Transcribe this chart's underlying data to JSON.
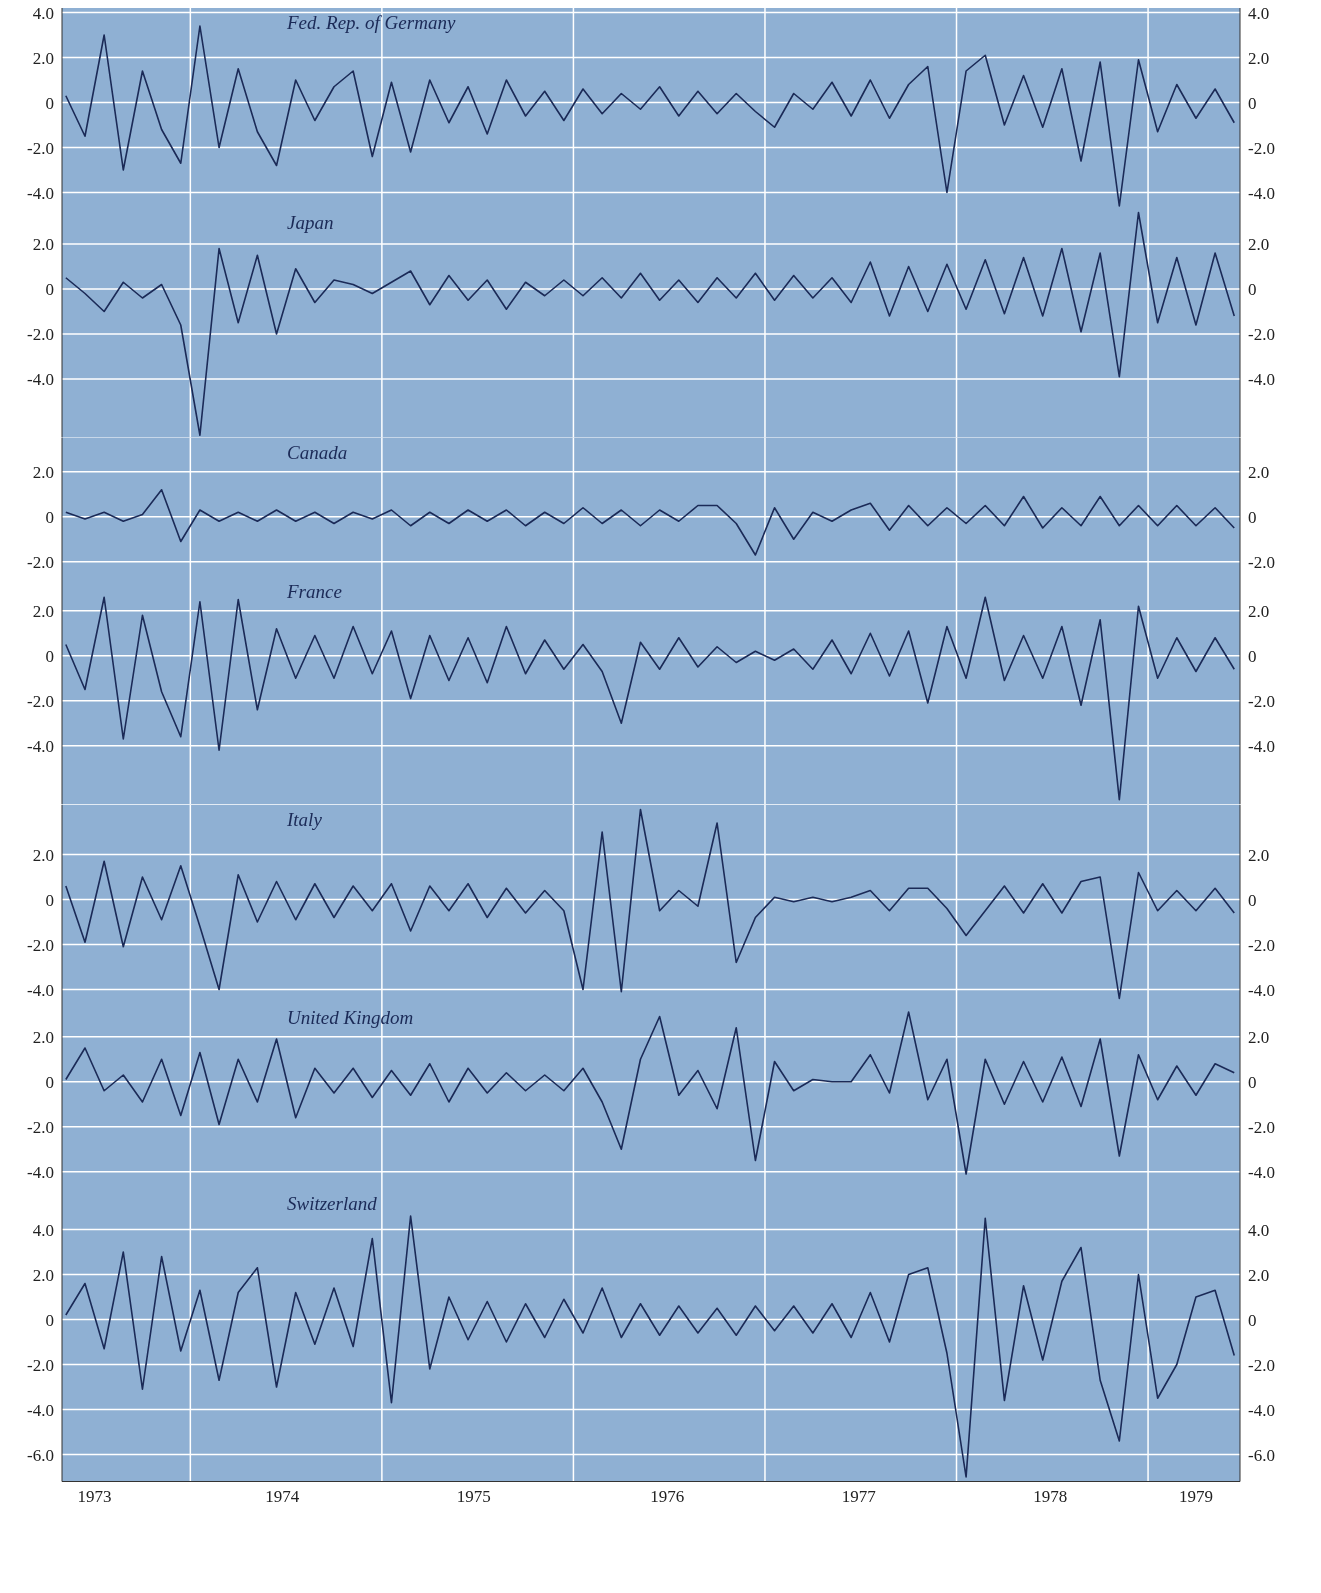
{
  "chart_data": [
    {
      "type": "line",
      "title": "Fed. Rep. of Germany",
      "color": "#1b2a57",
      "grid": true,
      "tick_labels": "y",
      "xlim": [
        1973.33,
        1979.48
      ],
      "xticks": [
        {
          "value": 1974,
          "label": null
        },
        {
          "value": 1975,
          "label": null
        },
        {
          "value": 1976,
          "label": null
        },
        {
          "value": 1977,
          "label": null
        },
        {
          "value": 1978,
          "label": null
        },
        {
          "value": 1979,
          "label": null
        }
      ],
      "ylim": [
        -4.7,
        4.2
      ],
      "yticks": [
        {
          "value": -4,
          "label": "-4.0"
        },
        {
          "value": -2,
          "label": "-2.0"
        },
        {
          "value": 0,
          "label": "0"
        },
        {
          "value": 2,
          "label": "2.0"
        },
        {
          "value": 4,
          "label": "4.0"
        }
      ],
      "y2lim": [
        -4.7,
        4.2
      ],
      "y2ticks": [
        {
          "value": -4,
          "label": "-4.0"
        },
        {
          "value": -2,
          "label": "-2.0"
        },
        {
          "value": 0,
          "label": "0"
        },
        {
          "value": 2,
          "label": "2.0"
        },
        {
          "value": 4,
          "label": "4.0"
        }
      ],
      "x": [
        1973.35,
        1973.45,
        1973.55,
        1973.65,
        1973.75,
        1973.85,
        1973.95,
        1974.05,
        1974.15,
        1974.25,
        1974.35,
        1974.45,
        1974.55,
        1974.65,
        1974.75,
        1974.85,
        1974.95,
        1975.05,
        1975.15,
        1975.25,
        1975.35,
        1975.45,
        1975.55,
        1975.65,
        1975.75,
        1975.85,
        1975.95,
        1976.05,
        1976.15,
        1976.25,
        1976.35,
        1976.45,
        1976.55,
        1976.65,
        1976.75,
        1976.85,
        1976.95,
        1977.05,
        1977.15,
        1977.25,
        1977.35,
        1977.45,
        1977.55,
        1977.65,
        1977.75,
        1977.85,
        1977.95,
        1978.05,
        1978.15,
        1978.25,
        1978.35,
        1978.45,
        1978.55,
        1978.65,
        1978.75,
        1978.85,
        1978.95,
        1979.05,
        1979.15,
        1979.25,
        1979.35,
        1979.45
      ],
      "values": [
        0.3,
        -1.5,
        3.0,
        -3.0,
        1.4,
        -1.2,
        -2.7,
        3.4,
        -2.0,
        1.5,
        -1.3,
        -2.8,
        1.0,
        -0.8,
        0.7,
        1.4,
        -2.4,
        0.9,
        -2.2,
        1.0,
        -0.9,
        0.7,
        -1.4,
        1.0,
        -0.6,
        0.5,
        -0.8,
        0.6,
        -0.5,
        0.4,
        -0.3,
        0.7,
        -0.6,
        0.5,
        -0.5,
        0.4,
        -0.4,
        -1.1,
        0.4,
        -0.3,
        0.9,
        -0.6,
        1.0,
        -0.7,
        0.8,
        1.6,
        -4.0,
        1.4,
        2.1,
        -1.0,
        1.2,
        -1.1,
        1.5,
        -2.6,
        1.8,
        -4.6,
        1.9,
        -1.3,
        0.8,
        -0.7,
        0.6,
        -0.9
      ]
    },
    {
      "type": "line",
      "title": "Japan",
      "color": "#1b2a57",
      "grid": true,
      "tick_labels": "y",
      "xlim": [
        1973.33,
        1979.48
      ],
      "xticks": [
        {
          "value": 1974,
          "label": null
        },
        {
          "value": 1975,
          "label": null
        },
        {
          "value": 1976,
          "label": null
        },
        {
          "value": 1977,
          "label": null
        },
        {
          "value": 1978,
          "label": null
        },
        {
          "value": 1979,
          "label": null
        }
      ],
      "ylim": [
        -6.6,
        3.6
      ],
      "yticks": [
        {
          "value": -4,
          "label": "-4.0"
        },
        {
          "value": -2,
          "label": "-2.0"
        },
        {
          "value": 0,
          "label": "0"
        },
        {
          "value": 2,
          "label": "2.0"
        }
      ],
      "y2lim": [
        -6.6,
        3.6
      ],
      "y2ticks": [
        {
          "value": -4,
          "label": "-4.0"
        },
        {
          "value": -2,
          "label": "-2.0"
        },
        {
          "value": 0,
          "label": "0"
        },
        {
          "value": 2,
          "label": "2.0"
        }
      ],
      "x": [
        1973.35,
        1973.45,
        1973.55,
        1973.65,
        1973.75,
        1973.85,
        1973.95,
        1974.05,
        1974.15,
        1974.25,
        1974.35,
        1974.45,
        1974.55,
        1974.65,
        1974.75,
        1974.85,
        1974.95,
        1975.05,
        1975.15,
        1975.25,
        1975.35,
        1975.45,
        1975.55,
        1975.65,
        1975.75,
        1975.85,
        1975.95,
        1976.05,
        1976.15,
        1976.25,
        1976.35,
        1976.45,
        1976.55,
        1976.65,
        1976.75,
        1976.85,
        1976.95,
        1977.05,
        1977.15,
        1977.25,
        1977.35,
        1977.45,
        1977.55,
        1977.65,
        1977.75,
        1977.85,
        1977.95,
        1978.05,
        1978.15,
        1978.25,
        1978.35,
        1978.45,
        1978.55,
        1978.65,
        1978.75,
        1978.85,
        1978.95,
        1979.05,
        1979.15,
        1979.25,
        1979.35,
        1979.45
      ],
      "values": [
        0.5,
        -0.2,
        -1.0,
        0.3,
        -0.4,
        0.2,
        -1.6,
        -6.5,
        1.8,
        -1.5,
        1.5,
        -2.0,
        0.9,
        -0.6,
        0.4,
        0.2,
        -0.2,
        0.3,
        0.8,
        -0.7,
        0.6,
        -0.5,
        0.4,
        -0.9,
        0.3,
        -0.3,
        0.4,
        -0.3,
        0.5,
        -0.4,
        0.7,
        -0.5,
        0.4,
        -0.6,
        0.5,
        -0.4,
        0.7,
        -0.5,
        0.6,
        -0.4,
        0.5,
        -0.6,
        1.2,
        -1.2,
        1.0,
        -1.0,
        1.1,
        -0.9,
        1.3,
        -1.1,
        1.4,
        -1.2,
        1.8,
        -1.9,
        1.6,
        -3.9,
        3.4,
        -1.5,
        1.4,
        -1.6,
        1.6,
        -1.2
      ]
    },
    {
      "type": "line",
      "title": "Canada",
      "color": "#1b2a57",
      "grid": true,
      "tick_labels": "y",
      "xlim": [
        1973.33,
        1979.48
      ],
      "xticks": [
        {
          "value": 1974,
          "label": null
        },
        {
          "value": 1975,
          "label": null
        },
        {
          "value": 1976,
          "label": null
        },
        {
          "value": 1977,
          "label": null
        },
        {
          "value": 1978,
          "label": null
        },
        {
          "value": 1979,
          "label": null
        }
      ],
      "ylim": [
        -2.7,
        3.5
      ],
      "yticks": [
        {
          "value": -2,
          "label": "-2.0"
        },
        {
          "value": 0,
          "label": "0"
        },
        {
          "value": 2,
          "label": "2.0"
        }
      ],
      "y2lim": [
        -2.7,
        3.5
      ],
      "y2ticks": [
        {
          "value": -2,
          "label": "-2.0"
        },
        {
          "value": 0,
          "label": "0"
        },
        {
          "value": 2,
          "label": "2.0"
        }
      ],
      "x": [
        1973.35,
        1973.45,
        1973.55,
        1973.65,
        1973.75,
        1973.85,
        1973.95,
        1974.05,
        1974.15,
        1974.25,
        1974.35,
        1974.45,
        1974.55,
        1974.65,
        1974.75,
        1974.85,
        1974.95,
        1975.05,
        1975.15,
        1975.25,
        1975.35,
        1975.45,
        1975.55,
        1975.65,
        1975.75,
        1975.85,
        1975.95,
        1976.05,
        1976.15,
        1976.25,
        1976.35,
        1976.45,
        1976.55,
        1976.65,
        1976.75,
        1976.85,
        1976.95,
        1977.05,
        1977.15,
        1977.25,
        1977.35,
        1977.45,
        1977.55,
        1977.65,
        1977.75,
        1977.85,
        1977.95,
        1978.05,
        1978.15,
        1978.25,
        1978.35,
        1978.45,
        1978.55,
        1978.65,
        1978.75,
        1978.85,
        1978.95,
        1979.05,
        1979.15,
        1979.25,
        1979.35,
        1979.45
      ],
      "values": [
        0.2,
        -0.1,
        0.2,
        -0.2,
        0.1,
        1.2,
        -1.1,
        0.3,
        -0.2,
        0.2,
        -0.2,
        0.3,
        -0.2,
        0.2,
        -0.3,
        0.2,
        -0.1,
        0.3,
        -0.4,
        0.2,
        -0.3,
        0.3,
        -0.2,
        0.3,
        -0.4,
        0.2,
        -0.3,
        0.4,
        -0.3,
        0.3,
        -0.4,
        0.3,
        -0.2,
        0.5,
        0.5,
        -0.3,
        -1.7,
        0.4,
        -1.0,
        0.2,
        -0.2,
        0.3,
        0.6,
        -0.6,
        0.5,
        -0.4,
        0.4,
        -0.3,
        0.5,
        -0.4,
        0.9,
        -0.5,
        0.4,
        -0.4,
        0.9,
        -0.4,
        0.5,
        -0.4,
        0.5,
        -0.4,
        0.4,
        -0.5
      ]
    },
    {
      "type": "line",
      "title": "France",
      "color": "#1b2a57",
      "grid": true,
      "tick_labels": "y",
      "xlim": [
        1973.33,
        1979.48
      ],
      "xticks": [
        {
          "value": 1974,
          "label": null
        },
        {
          "value": 1975,
          "label": null
        },
        {
          "value": 1976,
          "label": null
        },
        {
          "value": 1977,
          "label": null
        },
        {
          "value": 1978,
          "label": null
        },
        {
          "value": 1979,
          "label": null
        }
      ],
      "ylim": [
        -6.6,
        3.5
      ],
      "yticks": [
        {
          "value": -4,
          "label": "-4.0"
        },
        {
          "value": -2,
          "label": "-2.0"
        },
        {
          "value": 0,
          "label": "0"
        },
        {
          "value": 2,
          "label": "2.0"
        }
      ],
      "y2lim": [
        -6.6,
        3.5
      ],
      "y2ticks": [
        {
          "value": -4,
          "label": "-4.0"
        },
        {
          "value": -2,
          "label": "-2.0"
        },
        {
          "value": 0,
          "label": "0"
        },
        {
          "value": 2,
          "label": "2.0"
        }
      ],
      "x": [
        1973.35,
        1973.45,
        1973.55,
        1973.65,
        1973.75,
        1973.85,
        1973.95,
        1974.05,
        1974.15,
        1974.25,
        1974.35,
        1974.45,
        1974.55,
        1974.65,
        1974.75,
        1974.85,
        1974.95,
        1975.05,
        1975.15,
        1975.25,
        1975.35,
        1975.45,
        1975.55,
        1975.65,
        1975.75,
        1975.85,
        1975.95,
        1976.05,
        1976.15,
        1976.25,
        1976.35,
        1976.45,
        1976.55,
        1976.65,
        1976.75,
        1976.85,
        1976.95,
        1977.05,
        1977.15,
        1977.25,
        1977.35,
        1977.45,
        1977.55,
        1977.65,
        1977.75,
        1977.85,
        1977.95,
        1978.05,
        1978.15,
        1978.25,
        1978.35,
        1978.45,
        1978.55,
        1978.65,
        1978.75,
        1978.85,
        1978.95,
        1979.05,
        1979.15,
        1979.25,
        1979.35,
        1979.45
      ],
      "values": [
        0.5,
        -1.5,
        2.6,
        -3.7,
        1.8,
        -1.6,
        -3.6,
        2.4,
        -4.2,
        2.5,
        -2.4,
        1.2,
        -1.0,
        0.9,
        -1.0,
        1.3,
        -0.8,
        1.1,
        -1.9,
        0.9,
        -1.1,
        0.8,
        -1.2,
        1.3,
        -0.8,
        0.7,
        -0.6,
        0.5,
        -0.7,
        -3.0,
        0.6,
        -0.6,
        0.8,
        -0.5,
        0.4,
        -0.3,
        0.2,
        -0.2,
        0.3,
        -0.6,
        0.7,
        -0.8,
        1.0,
        -0.9,
        1.1,
        -2.1,
        1.3,
        -1.0,
        2.6,
        -1.1,
        0.9,
        -1.0,
        1.3,
        -2.2,
        1.6,
        -6.4,
        2.2,
        -1.0,
        0.8,
        -0.7,
        0.8,
        -0.6
      ]
    },
    {
      "type": "line",
      "title": "Italy",
      "color": "#1b2a57",
      "grid": true,
      "tick_labels": "y",
      "xlim": [
        1973.33,
        1979.48
      ],
      "xticks": [
        {
          "value": 1974,
          "label": null
        },
        {
          "value": 1975,
          "label": null
        },
        {
          "value": 1976,
          "label": null
        },
        {
          "value": 1977,
          "label": null
        },
        {
          "value": 1978,
          "label": null
        },
        {
          "value": 1979,
          "label": null
        }
      ],
      "ylim": [
        -4.6,
        4.2
      ],
      "yticks": [
        {
          "value": -4,
          "label": "-4.0"
        },
        {
          "value": -2,
          "label": "-2.0"
        },
        {
          "value": 0,
          "label": "0"
        },
        {
          "value": 2,
          "label": "2.0"
        }
      ],
      "y2lim": [
        -4.6,
        4.2
      ],
      "y2ticks": [
        {
          "value": -4,
          "label": "-4.0"
        },
        {
          "value": -2,
          "label": "-2.0"
        },
        {
          "value": 0,
          "label": "0"
        },
        {
          "value": 2,
          "label": "2.0"
        }
      ],
      "x": [
        1973.35,
        1973.45,
        1973.55,
        1973.65,
        1973.75,
        1973.85,
        1973.95,
        1974.05,
        1974.15,
        1974.25,
        1974.35,
        1974.45,
        1974.55,
        1974.65,
        1974.75,
        1974.85,
        1974.95,
        1975.05,
        1975.15,
        1975.25,
        1975.35,
        1975.45,
        1975.55,
        1975.65,
        1975.75,
        1975.85,
        1975.95,
        1976.05,
        1976.15,
        1976.25,
        1976.35,
        1976.45,
        1976.55,
        1976.65,
        1976.75,
        1976.85,
        1976.95,
        1977.05,
        1977.15,
        1977.25,
        1977.35,
        1977.45,
        1977.55,
        1977.65,
        1977.75,
        1977.85,
        1977.95,
        1978.05,
        1978.15,
        1978.25,
        1978.35,
        1978.45,
        1978.55,
        1978.65,
        1978.75,
        1978.85,
        1978.95,
        1979.05,
        1979.15,
        1979.25,
        1979.35,
        1979.45
      ],
      "values": [
        0.6,
        -1.9,
        1.7,
        -2.1,
        1.0,
        -0.9,
        1.5,
        -1.2,
        -4.0,
        1.1,
        -1.0,
        0.8,
        -0.9,
        0.7,
        -0.8,
        0.6,
        -0.5,
        0.7,
        -1.4,
        0.6,
        -0.5,
        0.7,
        -0.8,
        0.5,
        -0.6,
        0.4,
        -0.5,
        -4.0,
        3.0,
        -4.1,
        4.0,
        -0.5,
        0.4,
        -0.3,
        3.4,
        -2.8,
        -0.8,
        0.1,
        -0.1,
        0.1,
        -0.1,
        0.1,
        0.4,
        -0.5,
        0.5,
        0.5,
        -0.4,
        -1.6,
        -0.5,
        0.6,
        -0.6,
        0.7,
        -0.6,
        0.8,
        1.0,
        -4.4,
        1.2,
        -0.5,
        0.4,
        -0.5,
        0.5,
        -0.6
      ]
    },
    {
      "type": "line",
      "title": "United Kingdom",
      "color": "#1b2a57",
      "grid": true,
      "tick_labels": "y",
      "xlim": [
        1973.33,
        1979.48
      ],
      "xticks": [
        {
          "value": 1974,
          "label": null
        },
        {
          "value": 1975,
          "label": null
        },
        {
          "value": 1976,
          "label": null
        },
        {
          "value": 1977,
          "label": null
        },
        {
          "value": 1978,
          "label": null
        },
        {
          "value": 1979,
          "label": null
        }
      ],
      "ylim": [
        -4.8,
        3.5
      ],
      "yticks": [
        {
          "value": -4,
          "label": "-4.0"
        },
        {
          "value": -2,
          "label": "-2.0"
        },
        {
          "value": 0,
          "label": "0"
        },
        {
          "value": 2,
          "label": "2.0"
        }
      ],
      "y2lim": [
        -4.8,
        3.5
      ],
      "y2ticks": [
        {
          "value": -4,
          "label": "-4.0"
        },
        {
          "value": -2,
          "label": "-2.0"
        },
        {
          "value": 0,
          "label": "0"
        },
        {
          "value": 2,
          "label": "2.0"
        }
      ],
      "x": [
        1973.35,
        1973.45,
        1973.55,
        1973.65,
        1973.75,
        1973.85,
        1973.95,
        1974.05,
        1974.15,
        1974.25,
        1974.35,
        1974.45,
        1974.55,
        1974.65,
        1974.75,
        1974.85,
        1974.95,
        1975.05,
        1975.15,
        1975.25,
        1975.35,
        1975.45,
        1975.55,
        1975.65,
        1975.75,
        1975.85,
        1975.95,
        1976.05,
        1976.15,
        1976.25,
        1976.35,
        1976.45,
        1976.55,
        1976.65,
        1976.75,
        1976.85,
        1976.95,
        1977.05,
        1977.15,
        1977.25,
        1977.35,
        1977.45,
        1977.55,
        1977.65,
        1977.75,
        1977.85,
        1977.95,
        1978.05,
        1978.15,
        1978.25,
        1978.35,
        1978.45,
        1978.55,
        1978.65,
        1978.75,
        1978.85,
        1978.95,
        1979.05,
        1979.15,
        1979.25,
        1979.35,
        1979.45
      ],
      "values": [
        0.1,
        1.5,
        -0.4,
        0.3,
        -0.9,
        1.0,
        -1.5,
        1.3,
        -1.9,
        1.0,
        -0.9,
        1.9,
        -1.6,
        0.6,
        -0.5,
        0.6,
        -0.7,
        0.5,
        -0.6,
        0.8,
        -0.9,
        0.6,
        -0.5,
        0.4,
        -0.4,
        0.3,
        -0.4,
        0.6,
        -0.9,
        -3.0,
        1.0,
        2.9,
        -0.6,
        0.5,
        -1.2,
        2.4,
        -3.5,
        0.9,
        -0.4,
        0.1,
        0.0,
        0.0,
        1.2,
        -0.5,
        3.1,
        -0.8,
        1.0,
        -4.1,
        1.0,
        -1.0,
        0.9,
        -0.9,
        1.1,
        -1.1,
        1.9,
        -3.3,
        1.2,
        -0.8,
        0.7,
        -0.6,
        0.8,
        0.4
      ]
    },
    {
      "type": "line",
      "title": "Switzerland",
      "color": "#1b2a57",
      "grid": true,
      "xlim": [
        1973.33,
        1979.48
      ],
      "xticks": [
        {
          "value": 1973.5,
          "label": "1973"
        },
        {
          "value": 1974,
          "label": null
        },
        {
          "value": 1974.48,
          "label": "1974"
        },
        {
          "value": 1975,
          "label": null
        },
        {
          "value": 1975.48,
          "label": "1975"
        },
        {
          "value": 1976,
          "label": null
        },
        {
          "value": 1976.49,
          "label": "1976"
        },
        {
          "value": 1977,
          "label": null
        },
        {
          "value": 1977.49,
          "label": "1977"
        },
        {
          "value": 1978,
          "label": null
        },
        {
          "value": 1978.49,
          "label": "1978"
        },
        {
          "value": 1979,
          "label": null
        },
        {
          "value": 1979.25,
          "label": "1979"
        }
      ],
      "ylim": [
        -7.2,
        5.8
      ],
      "yticks": [
        {
          "value": -6,
          "label": "-6.0"
        },
        {
          "value": -4,
          "label": "-4.0"
        },
        {
          "value": -2,
          "label": "-2.0"
        },
        {
          "value": 0,
          "label": "0"
        },
        {
          "value": 2,
          "label": "2.0"
        },
        {
          "value": 4,
          "label": "4.0"
        }
      ],
      "y2lim": [
        -7.2,
        5.8
      ],
      "y2ticks": [
        {
          "value": -6,
          "label": "-6.0"
        },
        {
          "value": -4,
          "label": "-4.0"
        },
        {
          "value": -2,
          "label": "-2.0"
        },
        {
          "value": 0,
          "label": "0"
        },
        {
          "value": 2,
          "label": "2.0"
        },
        {
          "value": 4,
          "label": "4.0"
        }
      ],
      "x": [
        1973.35,
        1973.45,
        1973.55,
        1973.65,
        1973.75,
        1973.85,
        1973.95,
        1974.05,
        1974.15,
        1974.25,
        1974.35,
        1974.45,
        1974.55,
        1974.65,
        1974.75,
        1974.85,
        1974.95,
        1975.05,
        1975.15,
        1975.25,
        1975.35,
        1975.45,
        1975.55,
        1975.65,
        1975.75,
        1975.85,
        1975.95,
        1976.05,
        1976.15,
        1976.25,
        1976.35,
        1976.45,
        1976.55,
        1976.65,
        1976.75,
        1976.85,
        1976.95,
        1977.05,
        1977.15,
        1977.25,
        1977.35,
        1977.45,
        1977.55,
        1977.65,
        1977.75,
        1977.85,
        1977.95,
        1978.05,
        1978.15,
        1978.25,
        1978.35,
        1978.45,
        1978.55,
        1978.65,
        1978.75,
        1978.85,
        1978.95,
        1979.05,
        1979.15,
        1979.25,
        1979.35,
        1979.45
      ],
      "values": [
        0.2,
        1.6,
        -1.3,
        3.0,
        -3.1,
        2.8,
        -1.4,
        1.3,
        -2.7,
        1.2,
        2.3,
        -3.0,
        1.2,
        -1.1,
        1.4,
        -1.2,
        3.6,
        -3.7,
        4.6,
        -2.2,
        1.0,
        -0.9,
        0.8,
        -1.0,
        0.7,
        -0.8,
        0.9,
        -0.6,
        1.4,
        -0.8,
        0.7,
        -0.7,
        0.6,
        -0.6,
        0.5,
        -0.7,
        0.6,
        -0.5,
        0.6,
        -0.6,
        0.7,
        -0.8,
        1.2,
        -1.0,
        2.0,
        2.3,
        -1.5,
        -7.0,
        4.5,
        -3.6,
        1.5,
        -1.8,
        1.7,
        3.2,
        -2.7,
        -5.4,
        2.0,
        -3.5,
        -2.0,
        1.0,
        1.3,
        -1.6
      ]
    }
  ]
}
